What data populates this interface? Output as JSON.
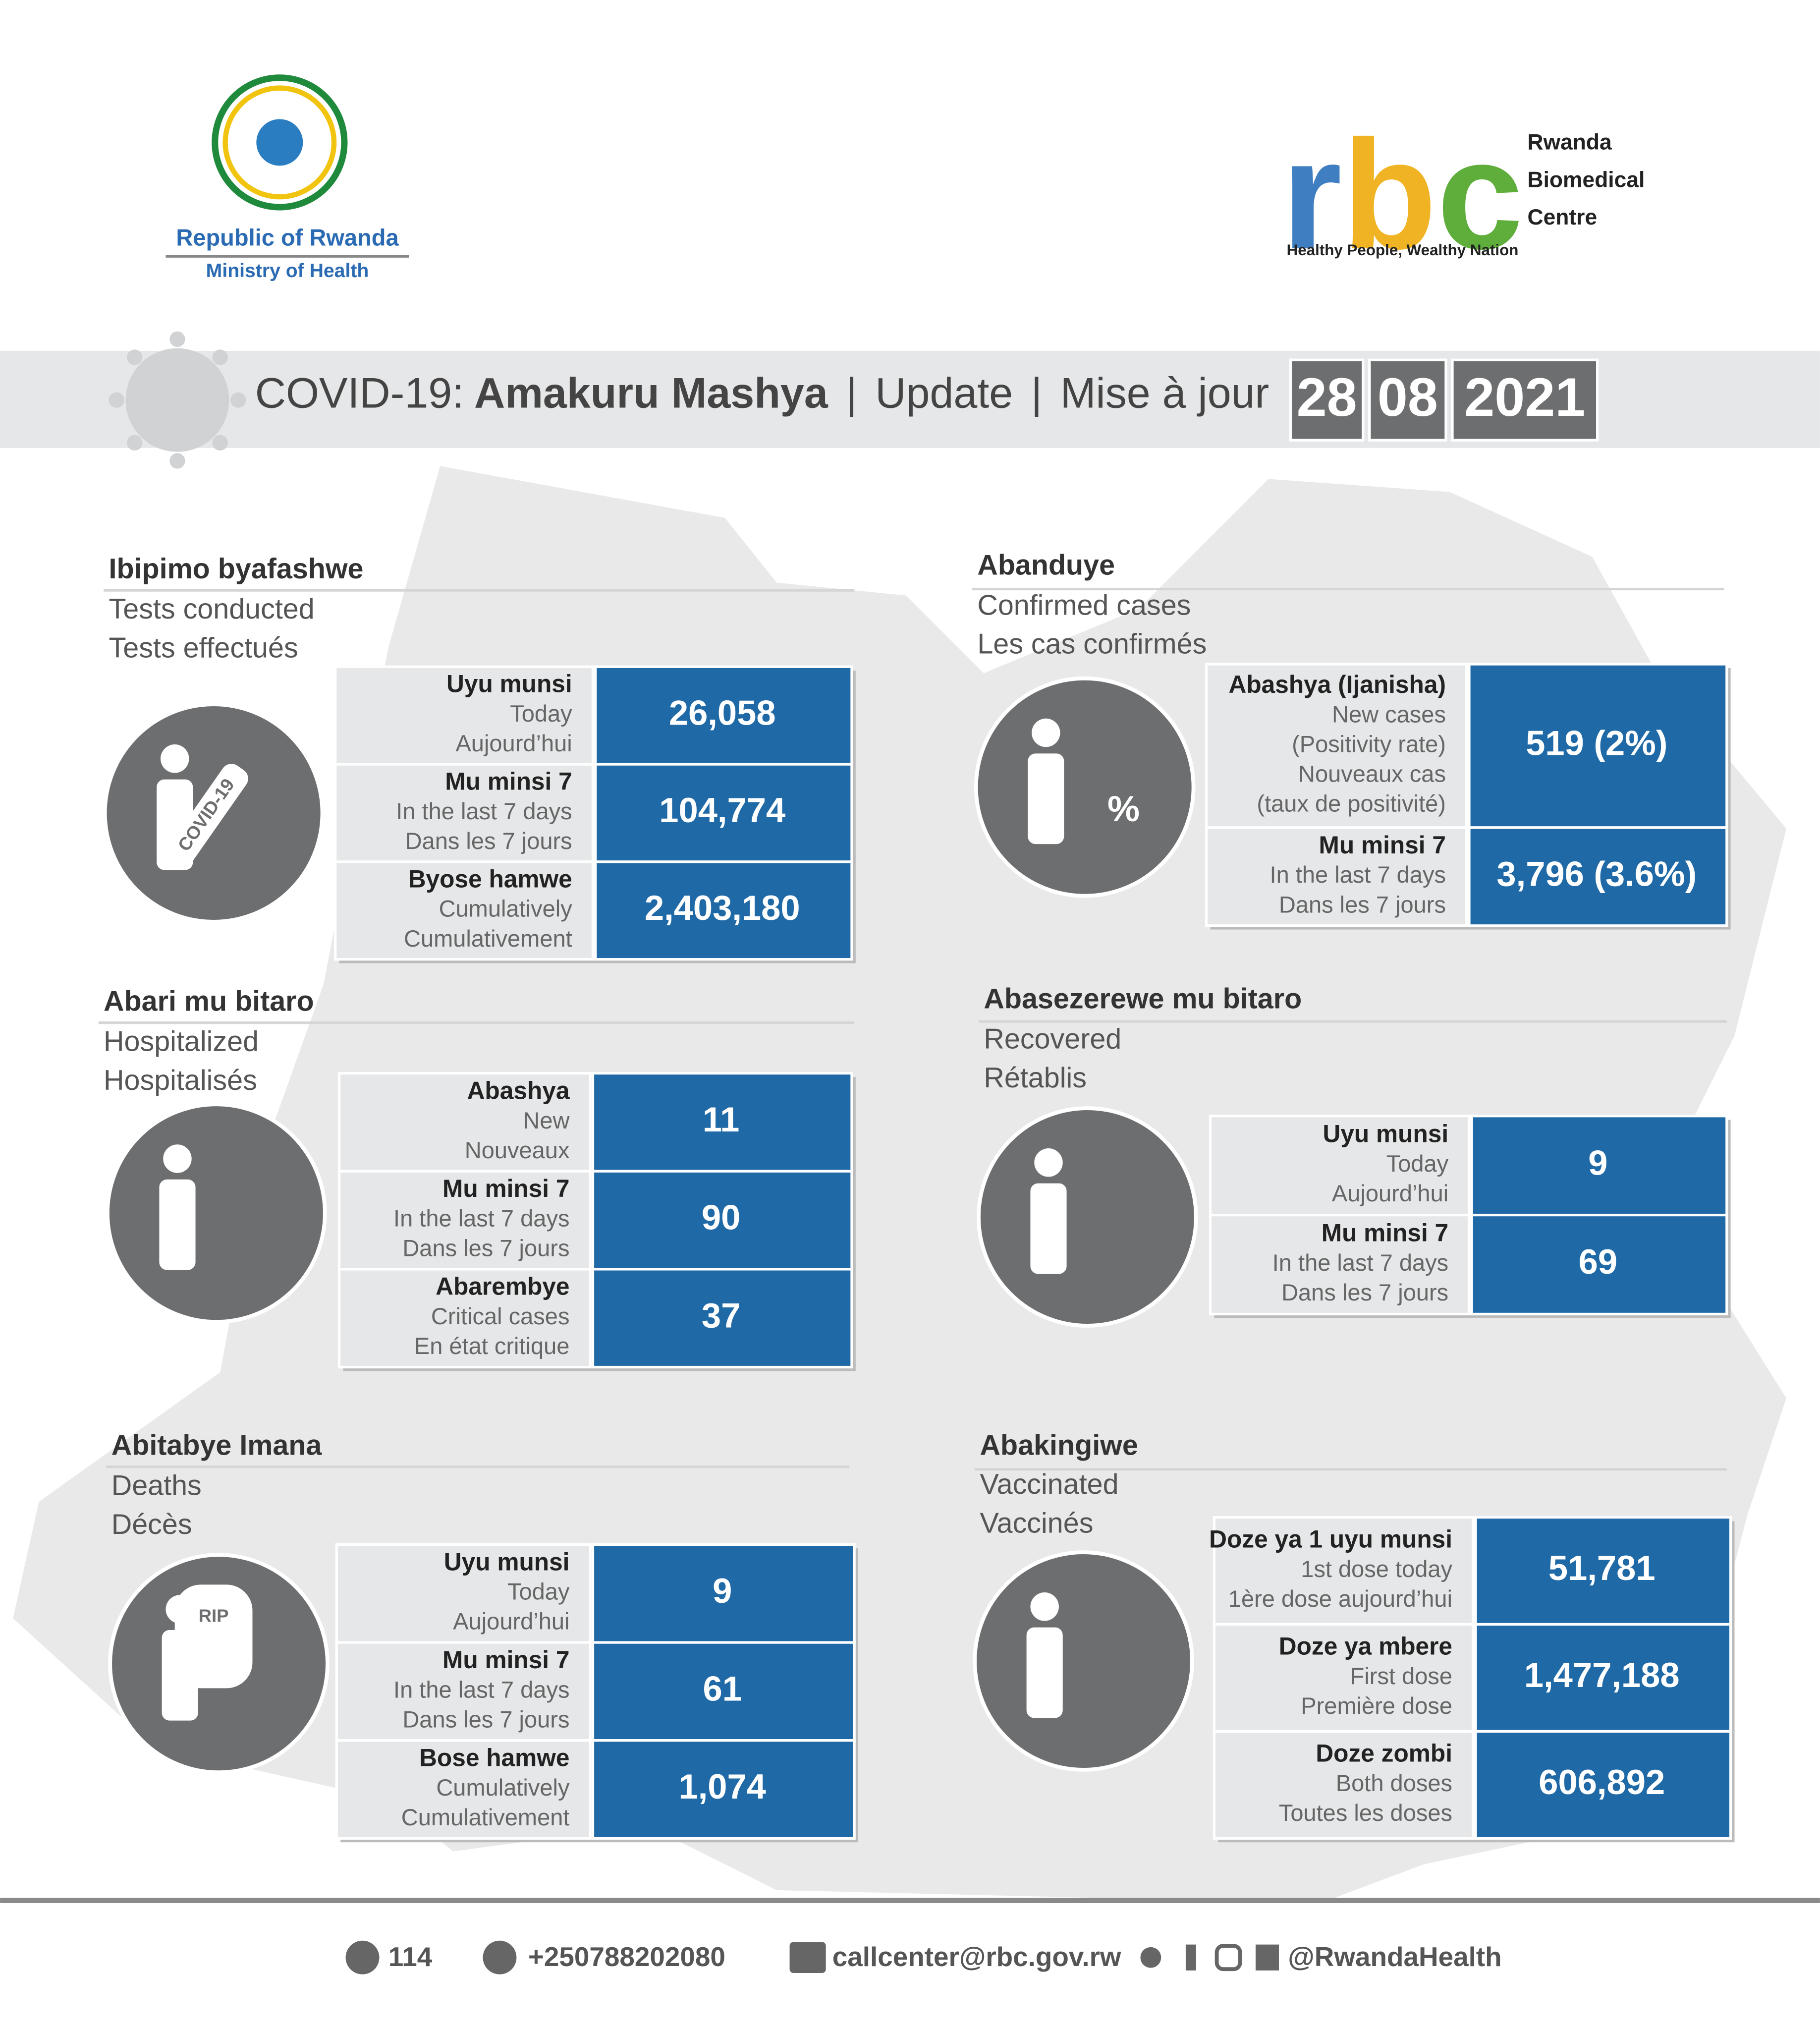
{
  "logos": {
    "left": [
      "Republic of Rwanda",
      "Ministry of Health"
    ],
    "right": {
      "letters": [
        "r",
        "b",
        "c"
      ],
      "name": [
        "Rwanda",
        "Biomedical",
        "Centre"
      ],
      "tagline": "Healthy People, Wealthy Nation"
    }
  },
  "banner": {
    "prefix": "COVID-19:",
    "title": "Amakuru Mashya",
    "sep1": "|",
    "update": "Update",
    "sep2": "|",
    "mise": "Mise à jour",
    "date": [
      "28",
      "08",
      "2021"
    ]
  },
  "panels": [
    {
      "title": "Ibipimo byafashwe",
      "subtitle": [
        "Tests conducted",
        "Tests effectués"
      ],
      "icon_text": "COVID-19",
      "rows": [
        {
          "label": [
            "Uyu munsi",
            "Today",
            "Aujourd’hui"
          ],
          "value": "26,058"
        },
        {
          "label": [
            "Mu minsi 7",
            "In the last 7 days",
            "Dans les 7 jours"
          ],
          "value": "104,774"
        },
        {
          "label": [
            "Byose hamwe",
            "Cumulatively",
            "Cumulativement"
          ],
          "value": "2,403,180"
        }
      ]
    },
    {
      "title": "Abanduye",
      "subtitle": [
        "Confirmed cases",
        "Les cas confirmés"
      ],
      "icon_text": "%",
      "rows": [
        {
          "label": [
            "Abashya (Ijanisha)",
            "New cases",
            "(Positivity rate)",
            "Nouveaux cas",
            "(taux de positivité)"
          ],
          "value": "519 (2%)"
        },
        {
          "label": [
            "Mu minsi 7",
            "In the last 7 days",
            "Dans les 7 jours"
          ],
          "value": "3,796 (3.6%)"
        }
      ]
    },
    {
      "title": "Abari mu bitaro",
      "subtitle": [
        "Hospitalized",
        "Hospitalisés"
      ],
      "rows": [
        {
          "label": [
            "Abashya",
            "New",
            "Nouveaux"
          ],
          "value": "11"
        },
        {
          "label": [
            "Mu minsi 7",
            "In the last 7 days",
            "Dans les 7 jours"
          ],
          "value": "90"
        },
        {
          "label": [
            "Abarembye",
            "Critical cases",
            "En état critique"
          ],
          "value": "37"
        }
      ]
    },
    {
      "title": "Abasezerewe mu bitaro",
      "subtitle": [
        "Recovered",
        "Rétablis"
      ],
      "rows": [
        {
          "label": [
            "Uyu munsi",
            "Today",
            "Aujourd’hui"
          ],
          "value": "9"
        },
        {
          "label": [
            "Mu minsi 7",
            "In the last 7 days",
            "Dans les 7 jours"
          ],
          "value": "69"
        }
      ]
    },
    {
      "title": "Abitabye Imana",
      "subtitle": [
        "Deaths",
        "Décès"
      ],
      "icon_text": "RIP",
      "rows": [
        {
          "label": [
            "Uyu munsi",
            "Today",
            "Aujourd’hui"
          ],
          "value": "9"
        },
        {
          "label": [
            "Mu minsi 7",
            "In the last 7 days",
            "Dans les 7 jours"
          ],
          "value": "61"
        },
        {
          "label": [
            "Bose hamwe",
            "Cumulatively",
            "Cumulativement"
          ],
          "value": "1,074"
        }
      ]
    },
    {
      "title": "Abakingiwe",
      "subtitle": [
        "Vaccinated",
        "Vaccinés"
      ],
      "rows": [
        {
          "label": [
            "Doze ya 1 uyu munsi",
            "1st dose today",
            "1ère dose  aujourd’hui"
          ],
          "value": "51,781"
        },
        {
          "label": [
            "Doze ya mbere",
            "First dose",
            "Première dose"
          ],
          "value": "1,477,188"
        },
        {
          "label": [
            "Doze zombi",
            "Both doses",
            "Toutes les doses"
          ],
          "value": "606,892"
        }
      ]
    }
  ],
  "footer": [
    "114",
    "+250788202080",
    "callcenter@rbc.gov.rw",
    "@RwandaHealth"
  ]
}
